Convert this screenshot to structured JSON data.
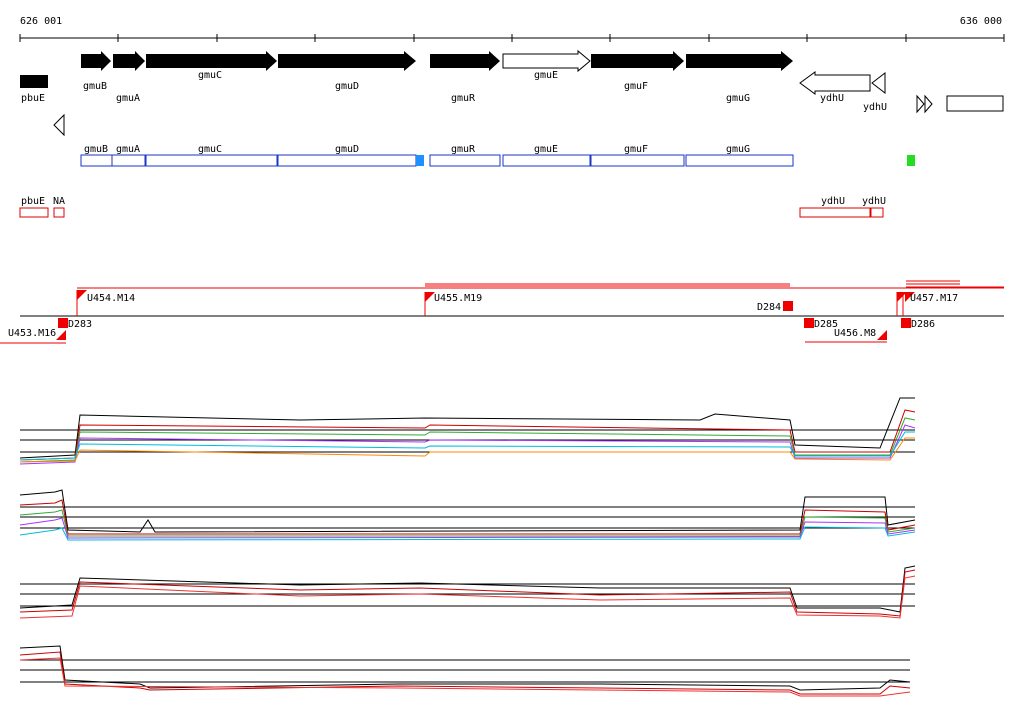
{
  "ruler": {
    "start": "626 001",
    "end": "636 000"
  },
  "genes": [
    "gmuB",
    "gmuA",
    "gmuC",
    "gmuD",
    "gmuR",
    "gmuE",
    "gmuF",
    "gmuG",
    "ydhU",
    "ydhU",
    "pbuE"
  ],
  "annotations": [
    "gmuB",
    "gmuA",
    "gmuC",
    "gmuD",
    "gmuR",
    "gmuE",
    "gmuF",
    "gmuG"
  ],
  "other_features": [
    "pbuE",
    "NA",
    "ydhU",
    "ydhU"
  ],
  "transcripts": [
    "U454.M14",
    "U455.M19",
    "D284",
    "U453.M16",
    "D283",
    "D285",
    "U456.M8",
    "D286",
    "U457.M17"
  ]
}
